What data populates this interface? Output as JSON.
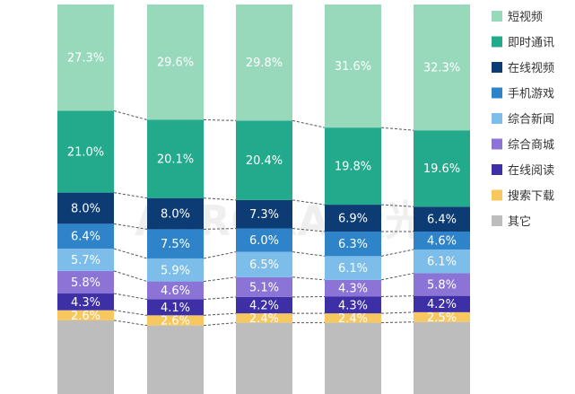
{
  "chart_data": {
    "type": "bar",
    "stacked": true,
    "categories": [
      "",
      "",
      "",
      "",
      ""
    ],
    "series": [
      {
        "name": "其它",
        "color": "#bdbdbd",
        "values": [
          null,
          null,
          null,
          null,
          null
        ]
      },
      {
        "name": "搜索下载",
        "color": "#f7c85f",
        "values": [
          2.6,
          2.6,
          2.4,
          2.4,
          2.5
        ],
        "labels": [
          "2.6%",
          "2.6%",
          "2.4%",
          "2.4%",
          "2.5%"
        ]
      },
      {
        "name": "在线阅读",
        "color": "#3d2fa6",
        "values": [
          4.3,
          4.1,
          4.2,
          4.3,
          4.2
        ],
        "labels": [
          "4.3%",
          "4.1%",
          "4.2%",
          "4.3%",
          "4.2%"
        ]
      },
      {
        "name": "综合商城",
        "color": "#8b74d6",
        "values": [
          5.8,
          4.6,
          5.1,
          4.3,
          5.8
        ],
        "labels": [
          "5.8%",
          "4.6%",
          "5.1%",
          "4.3%",
          "5.8%"
        ]
      },
      {
        "name": "综合新闻",
        "color": "#7dbde9",
        "values": [
          5.7,
          5.9,
          6.5,
          6.1,
          6.1
        ],
        "labels": [
          "5.7%",
          "5.9%",
          "6.5%",
          "6.1%",
          "6.1%"
        ]
      },
      {
        "name": "手机游戏",
        "color": "#2f84c9",
        "values": [
          6.4,
          7.5,
          6.0,
          6.3,
          4.6
        ],
        "labels": [
          "6.4%",
          "7.5%",
          "6.0%",
          "6.3%",
          "4.6%"
        ]
      },
      {
        "name": "在线视频",
        "color": "#0d3b73",
        "values": [
          8.0,
          8.0,
          7.3,
          6.9,
          6.4
        ],
        "labels": [
          "8.0%",
          "8.0%",
          "7.3%",
          "6.9%",
          "6.4%"
        ]
      },
      {
        "name": "即时通讯",
        "color": "#23a98c",
        "values": [
          21.0,
          20.1,
          20.4,
          19.8,
          19.6
        ],
        "labels": [
          "21.0%",
          "20.1%",
          "20.4%",
          "19.8%",
          "19.6%"
        ]
      },
      {
        "name": "短视频",
        "color": "#98d9bc",
        "values": [
          27.3,
          29.6,
          29.8,
          31.6,
          32.3
        ],
        "labels": [
          "27.3%",
          "29.6%",
          "29.8%",
          "31.6%",
          "32.3%"
        ]
      }
    ],
    "legend_order": [
      "短视频",
      "即时通讯",
      "在线视频",
      "手机游戏",
      "综合新闻",
      "综合商城",
      "在线阅读",
      "搜索下载",
      "其它"
    ],
    "legend_position": "right",
    "connector_lines": "dashed",
    "grid": false,
    "watermark": "AURORA 极光",
    "ylim": [
      0,
      100
    ]
  }
}
